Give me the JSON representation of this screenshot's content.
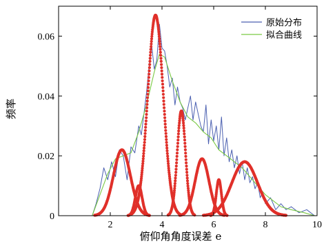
{
  "chart_data": {
    "type": "line",
    "title": "",
    "xlabel": "俯仰角角度误差 e",
    "ylabel": "频率",
    "xlim": [
      0,
      10
    ],
    "ylim": [
      0,
      0.07
    ],
    "x_ticks": [
      2,
      4,
      6,
      8,
      10
    ],
    "y_ticks": [
      0,
      0.02,
      0.04,
      0.06
    ],
    "y_tick_labels": [
      "0",
      "0.02",
      "0.04",
      "0.06"
    ],
    "legend_position": "top-right",
    "grid": false,
    "series": [
      {
        "name": "原始分布",
        "style": "line",
        "color": "#4a5fb0",
        "x": [
          1.3,
          1.45,
          1.6,
          1.75,
          1.9,
          2.05,
          2.2,
          2.35,
          2.5,
          2.65,
          2.8,
          2.95,
          3.1,
          3.2,
          3.3,
          3.4,
          3.5,
          3.6,
          3.7,
          3.8,
          3.9,
          4.0,
          4.1,
          4.2,
          4.3,
          4.4,
          4.5,
          4.6,
          4.7,
          4.8,
          4.9,
          5.0,
          5.1,
          5.2,
          5.3,
          5.4,
          5.5,
          5.6,
          5.7,
          5.8,
          5.9,
          6.0,
          6.1,
          6.2,
          6.3,
          6.4,
          6.5,
          6.6,
          6.7,
          6.8,
          6.9,
          7.0,
          7.1,
          7.2,
          7.3,
          7.4,
          7.5,
          7.6,
          7.7,
          7.8,
          7.9,
          8.0,
          8.2,
          8.4,
          8.6,
          8.8,
          9.0,
          9.3,
          9.6,
          9.9
        ],
        "values": [
          0,
          0.004,
          0.009,
          0.016,
          0.012,
          0.018,
          0.013,
          0.022,
          0.02,
          0.012,
          0.023,
          0.021,
          0.03,
          0.027,
          0.034,
          0.041,
          0.05,
          0.057,
          0.049,
          0.052,
          0.064,
          0.056,
          0.055,
          0.05,
          0.043,
          0.046,
          0.037,
          0.043,
          0.038,
          0.036,
          0.032,
          0.036,
          0.04,
          0.032,
          0.038,
          0.034,
          0.03,
          0.028,
          0.037,
          0.024,
          0.032,
          0.025,
          0.03,
          0.022,
          0.033,
          0.02,
          0.026,
          0.018,
          0.022,
          0.016,
          0.02,
          0.014,
          0.018,
          0.012,
          0.016,
          0.011,
          0.013,
          0.009,
          0.011,
          0.006,
          0.008,
          0.004,
          0.006,
          0.002,
          0.004,
          0.002,
          0.003,
          0.001,
          0.002,
          0
        ]
      },
      {
        "name": "拟合曲线",
        "style": "line",
        "color": "#7ac943",
        "x": [
          1.3,
          1.6,
          1.9,
          2.2,
          2.5,
          2.8,
          3.1,
          3.4,
          3.7,
          3.9,
          4.1,
          4.4,
          4.7,
          5.0,
          5.3,
          5.6,
          5.9,
          6.2,
          6.5,
          6.8,
          7.1,
          7.4,
          7.7,
          8.0,
          8.3,
          8.6,
          9.0,
          9.5,
          9.9
        ],
        "values": [
          0,
          0.007,
          0.014,
          0.019,
          0.02,
          0.021,
          0.028,
          0.037,
          0.048,
          0.054,
          0.053,
          0.045,
          0.038,
          0.033,
          0.031,
          0.028,
          0.026,
          0.022,
          0.02,
          0.018,
          0.016,
          0.013,
          0.01,
          0.007,
          0.005,
          0.003,
          0.002,
          0.001,
          0
        ]
      },
      {
        "style": "gaussian-points",
        "color": "#e0302a",
        "components": [
          {
            "mu": 2.45,
            "sigma": 0.33,
            "amp": 0.022
          },
          {
            "mu": 3.1,
            "sigma": 0.13,
            "amp": 0.01
          },
          {
            "mu": 3.75,
            "sigma": 0.3,
            "amp": 0.067
          },
          {
            "mu": 4.75,
            "sigma": 0.16,
            "amp": 0.035
          },
          {
            "mu": 5.55,
            "sigma": 0.27,
            "amp": 0.019
          },
          {
            "mu": 6.2,
            "sigma": 0.1,
            "amp": 0.012
          },
          {
            "mu": 7.2,
            "sigma": 0.5,
            "amp": 0.018
          }
        ]
      }
    ]
  }
}
